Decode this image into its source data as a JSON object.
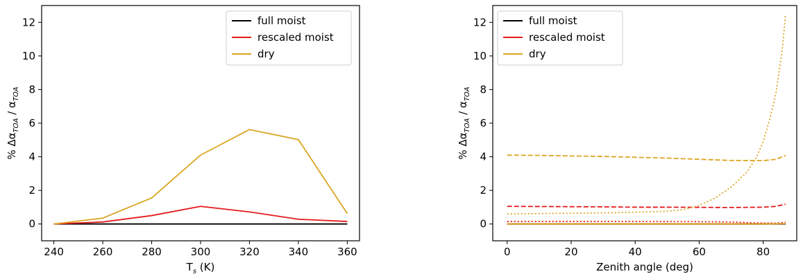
{
  "chart_data": [
    {
      "type": "line",
      "xlabel": "T",
      "xlabel_sub": "s",
      "xlabel_suffix": " (K)",
      "ylabel": "% Δα",
      "ylabel_sub": "TOA",
      "ylabel_mid": " / α",
      "ylabel_sub2": "TOA",
      "xlim": [
        235,
        365
      ],
      "ylim": [
        -1,
        13
      ],
      "xticks": [
        240,
        260,
        280,
        300,
        320,
        340,
        360
      ],
      "yticks": [
        0,
        2,
        4,
        6,
        8,
        10,
        12
      ],
      "legend_position": "top-right",
      "legend": [
        {
          "label": "full moist",
          "color": "#000000"
        },
        {
          "label": "rescaled moist",
          "color": "#e41a1c"
        },
        {
          "label": "dry",
          "color": "#daa520"
        }
      ],
      "series": [
        {
          "name": "full moist",
          "color": "#000000",
          "dash": "solid",
          "x": [
            240,
            260,
            280,
            300,
            320,
            340,
            360
          ],
          "y": [
            0,
            0,
            0,
            0,
            0,
            0,
            0
          ]
        },
        {
          "name": "rescaled moist",
          "color": "#e41a1c",
          "dash": "solid",
          "x": [
            240,
            260,
            280,
            300,
            320,
            340,
            360
          ],
          "y": [
            0,
            0.12,
            0.5,
            1.05,
            0.72,
            0.28,
            0.15
          ]
        },
        {
          "name": "dry",
          "color": "#daa520",
          "dash": "solid",
          "x": [
            240,
            260,
            280,
            300,
            320,
            340,
            360
          ],
          "y": [
            0,
            0.35,
            1.55,
            4.1,
            5.62,
            5.02,
            0.62
          ]
        }
      ]
    },
    {
      "type": "line",
      "xlabel": "Zenith angle (deg)",
      "xlabel_sub": "",
      "xlabel_suffix": "",
      "ylabel": "% Δα",
      "ylabel_sub": "TOA",
      "ylabel_mid": " / α",
      "ylabel_sub2": "TOA",
      "xlim": [
        -4.5,
        90.5
      ],
      "ylim": [
        -1,
        13
      ],
      "xticks": [
        0,
        20,
        40,
        60,
        80
      ],
      "yticks": [
        0,
        2,
        4,
        6,
        8,
        10,
        12
      ],
      "legend_position": "top-left",
      "legend": [
        {
          "label": "full moist",
          "color": "#000000"
        },
        {
          "label": "rescaled moist",
          "color": "#e41a1c"
        },
        {
          "label": "dry",
          "color": "#daa520"
        }
      ],
      "series": [
        {
          "color": "#000000",
          "dash": "solid",
          "x": [
            0,
            10,
            20,
            30,
            40,
            50,
            60,
            70,
            80,
            87
          ],
          "y": [
            0,
            0,
            0,
            0,
            0,
            0,
            0,
            0,
            0,
            0
          ]
        },
        {
          "color": "#e41a1c",
          "dash": "dashed",
          "x": [
            0,
            10,
            20,
            30,
            40,
            50,
            60,
            70,
            80,
            84,
            87
          ],
          "y": [
            1.05,
            1.04,
            1.03,
            1.02,
            1.0,
            1.0,
            0.99,
            0.98,
            1.0,
            1.05,
            1.18
          ]
        },
        {
          "color": "#daa520",
          "dash": "dashed",
          "x": [
            0,
            10,
            20,
            30,
            40,
            50,
            60,
            70,
            80,
            84,
            87
          ],
          "y": [
            4.1,
            4.08,
            4.05,
            4.02,
            3.97,
            3.92,
            3.85,
            3.78,
            3.77,
            3.85,
            4.08
          ]
        },
        {
          "color": "#e41a1c",
          "dash": "dotted",
          "x": [
            0,
            20,
            40,
            60,
            70,
            75,
            80,
            84,
            87
          ],
          "y": [
            0.15,
            0.15,
            0.15,
            0.14,
            0.12,
            0.08,
            0.05,
            0.05,
            0.1
          ]
        },
        {
          "color": "#daa520",
          "dash": "dotted",
          "x": [
            0,
            10,
            20,
            30,
            40,
            50,
            55,
            60,
            65,
            70,
            75,
            78,
            80,
            82,
            84,
            86,
            87
          ],
          "y": [
            0.6,
            0.62,
            0.64,
            0.66,
            0.7,
            0.76,
            0.85,
            1.1,
            1.55,
            2.2,
            3.1,
            4.0,
            4.9,
            6.2,
            7.8,
            10.4,
            12.5
          ]
        },
        {
          "color": "#e41a1c",
          "dash": "solid",
          "x": [
            0,
            40,
            80,
            87
          ],
          "y": [
            0,
            0,
            0,
            0.02
          ]
        },
        {
          "color": "#daa520",
          "dash": "solid",
          "x": [
            0,
            40,
            80,
            87
          ],
          "y": [
            0,
            0,
            0,
            0.02
          ]
        }
      ]
    }
  ]
}
